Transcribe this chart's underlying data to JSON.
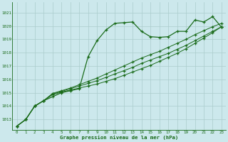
{
  "title": "Graphe pression niveau de la mer (hPa)",
  "bg_color": "#cce8ec",
  "grid_color": "#aacccc",
  "line_color": "#1a6b1a",
  "xlim": [
    -0.5,
    23.5
  ],
  "ylim": [
    1012.2,
    1021.8
  ],
  "yticks": [
    1013,
    1014,
    1015,
    1016,
    1017,
    1018,
    1019,
    1020,
    1021
  ],
  "xticks": [
    0,
    1,
    2,
    3,
    4,
    5,
    6,
    7,
    8,
    9,
    10,
    11,
    12,
    13,
    14,
    15,
    16,
    17,
    18,
    19,
    20,
    21,
    22,
    23
  ],
  "series": [
    [
      1012.5,
      1013.0,
      1014.0,
      1014.4,
      1014.7,
      1015.0,
      1015.15,
      1015.3,
      1017.7,
      1018.9,
      1019.7,
      1020.2,
      1020.25,
      1020.3,
      1019.6,
      1019.2,
      1019.15,
      1019.2,
      1019.6,
      1019.6,
      1020.45,
      1020.3,
      1020.7,
      1019.9
    ],
    [
      1012.5,
      1013.0,
      1014.0,
      1014.4,
      1014.85,
      1015.05,
      1015.2,
      1015.35,
      1015.5,
      1015.65,
      1015.85,
      1016.05,
      1016.3,
      1016.55,
      1016.8,
      1017.05,
      1017.35,
      1017.65,
      1017.95,
      1018.3,
      1018.7,
      1019.1,
      1019.5,
      1019.95
    ],
    [
      1012.5,
      1013.0,
      1014.0,
      1014.4,
      1014.9,
      1015.1,
      1015.3,
      1015.5,
      1015.7,
      1015.9,
      1016.15,
      1016.4,
      1016.65,
      1016.9,
      1017.2,
      1017.45,
      1017.7,
      1017.95,
      1018.25,
      1018.55,
      1018.9,
      1019.25,
      1019.6,
      1019.95
    ],
    [
      1012.5,
      1013.0,
      1014.0,
      1014.4,
      1014.95,
      1015.15,
      1015.35,
      1015.6,
      1015.85,
      1016.1,
      1016.4,
      1016.7,
      1017.0,
      1017.3,
      1017.6,
      1017.85,
      1018.1,
      1018.4,
      1018.7,
      1019.0,
      1019.35,
      1019.65,
      1019.95,
      1020.2
    ]
  ]
}
